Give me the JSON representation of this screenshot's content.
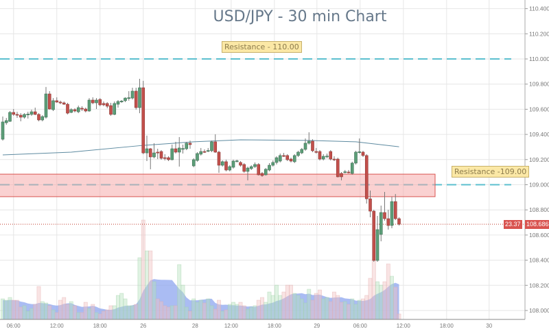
{
  "chart_data": {
    "type": "candlestick",
    "title": "USD/JPY - 30 min Chart",
    "ylim": [
      107.92,
      110.47
    ],
    "y_ticks": [
      "110.400",
      "110.200",
      "110.000",
      "109.800",
      "109.600",
      "109.400",
      "109.200",
      "109.000",
      "108.800",
      "108.600",
      "108.400",
      "108.200",
      "108.000"
    ],
    "x_ticks": [
      {
        "label": "06:00",
        "index": 3
      },
      {
        "label": "12:00",
        "index": 15
      },
      {
        "label": "18:00",
        "index": 27
      },
      {
        "label": "26",
        "index": 39
      },
      {
        "label": "28",
        "index": 53.4
      },
      {
        "label": "12:00",
        "index": 63.4
      },
      {
        "label": "18:00",
        "index": 75.4
      },
      {
        "label": "29",
        "index": 87.2
      },
      {
        "label": "06:00",
        "index": 99.2
      },
      {
        "label": "12:00",
        "index": 111.2
      },
      {
        "label": "18:00",
        "index": 123.2
      },
      {
        "label": "30",
        "index": 135
      }
    ],
    "grid": true,
    "candles_ohlc": [
      [
        109.362,
        109.542,
        109.351,
        109.499
      ],
      [
        109.493,
        109.531,
        109.477,
        109.51
      ],
      [
        109.504,
        109.586,
        109.499,
        109.575
      ],
      [
        109.575,
        109.602,
        109.548,
        109.559
      ],
      [
        109.559,
        109.58,
        109.531,
        109.553
      ],
      [
        109.553,
        109.569,
        109.504,
        109.537
      ],
      [
        109.537,
        109.569,
        109.526,
        109.559
      ],
      [
        109.559,
        109.58,
        109.526,
        109.562
      ],
      [
        109.559,
        109.597,
        109.548,
        109.58
      ],
      [
        109.58,
        109.613,
        109.553,
        109.559
      ],
      [
        109.559,
        109.569,
        109.504,
        109.515
      ],
      [
        109.515,
        109.553,
        109.504,
        109.542
      ],
      [
        109.537,
        109.777,
        109.526,
        109.722
      ],
      [
        109.722,
        109.744,
        109.597,
        109.602
      ],
      [
        109.597,
        109.689,
        109.586,
        109.668
      ],
      [
        109.668,
        109.695,
        109.651,
        109.657
      ],
      [
        109.657,
        109.668,
        109.64,
        109.655
      ],
      [
        109.651,
        109.662,
        109.635,
        109.64
      ],
      [
        109.64,
        109.651,
        109.559,
        109.569
      ],
      [
        109.575,
        109.608,
        109.569,
        109.597
      ],
      [
        109.597,
        109.608,
        109.575,
        109.586
      ],
      [
        109.58,
        109.629,
        109.569,
        109.613
      ],
      [
        109.608,
        109.624,
        109.586,
        109.602
      ],
      [
        109.602,
        109.613,
        109.575,
        109.586
      ],
      [
        109.586,
        109.689,
        109.58,
        109.673
      ],
      [
        109.673,
        109.695,
        109.64,
        109.651
      ],
      [
        109.651,
        109.689,
        109.602,
        109.673
      ],
      [
        109.678,
        109.689,
        109.624,
        109.635
      ],
      [
        109.646,
        109.662,
        109.624,
        109.635
      ],
      [
        109.646,
        109.657,
        109.608,
        109.624
      ],
      [
        109.629,
        109.651,
        109.548,
        109.559
      ],
      [
        109.559,
        109.662,
        109.553,
        109.646
      ],
      [
        109.64,
        109.673,
        109.613,
        109.662
      ],
      [
        109.662,
        109.673,
        109.651,
        109.665
      ],
      [
        109.668,
        109.695,
        109.657,
        109.689
      ],
      [
        109.689,
        109.744,
        109.668,
        109.692
      ],
      [
        109.689,
        109.771,
        109.678,
        109.744
      ],
      [
        109.744,
        109.771,
        109.597,
        109.613
      ],
      [
        109.613,
        109.842,
        109.569,
        109.771
      ],
      [
        109.771,
        109.826,
        109.243,
        109.253
      ],
      [
        109.253,
        109.39,
        109.188,
        109.286
      ],
      [
        109.286,
        109.292,
        109.123,
        109.221
      ],
      [
        109.221,
        109.33,
        109.21,
        109.253
      ],
      [
        109.259,
        109.286,
        109.204,
        109.257
      ],
      [
        109.264,
        109.275,
        109.199,
        109.21
      ],
      [
        109.215,
        109.243,
        109.193,
        109.213
      ],
      [
        109.215,
        109.226,
        109.188,
        109.199
      ],
      [
        109.199,
        109.319,
        109.193,
        109.286
      ],
      [
        109.286,
        109.341,
        109.248,
        109.259
      ],
      [
        109.259,
        109.379,
        109.144,
        109.292
      ],
      [
        109.286,
        109.319,
        109.248,
        109.288
      ],
      [
        109.286,
        109.341,
        109.275,
        109.33
      ],
      [
        109.33,
        109.351,
        109.286,
        109.319
      ],
      [
        109.15,
        109.21,
        109.139,
        109.199
      ],
      [
        109.193,
        109.259,
        109.183,
        109.248
      ],
      [
        109.243,
        109.292,
        109.232,
        109.264
      ],
      [
        109.264,
        109.281,
        109.253,
        109.262
      ],
      [
        109.27,
        109.292,
        109.259,
        109.272
      ],
      [
        109.27,
        109.351,
        109.259,
        109.341
      ],
      [
        109.341,
        109.401,
        109.253,
        109.259
      ],
      [
        109.259,
        109.27,
        109.095,
        109.155
      ],
      [
        109.155,
        109.193,
        109.144,
        109.183
      ],
      [
        109.183,
        109.199,
        109.106,
        109.117
      ],
      [
        109.117,
        109.155,
        109.106,
        109.144
      ],
      [
        109.139,
        109.199,
        109.128,
        109.188
      ],
      [
        109.188,
        109.199,
        109.177,
        109.19
      ],
      [
        109.177,
        109.188,
        109.144,
        109.155
      ],
      [
        109.161,
        109.172,
        109.095,
        109.106
      ],
      [
        109.106,
        109.144,
        109.035,
        109.133
      ],
      [
        109.128,
        109.155,
        109.117,
        109.144
      ],
      [
        109.144,
        109.177,
        109.133,
        109.161
      ],
      [
        109.161,
        109.172,
        109.073,
        109.079
      ],
      [
        109.09,
        109.101,
        109.063,
        109.073
      ],
      [
        109.079,
        109.133,
        109.073,
        109.123
      ],
      [
        109.117,
        109.172,
        109.106,
        109.155
      ],
      [
        109.155,
        109.193,
        109.144,
        109.177
      ],
      [
        109.177,
        109.226,
        109.161,
        109.215
      ],
      [
        109.188,
        109.248,
        109.177,
        109.232
      ],
      [
        109.232,
        109.253,
        109.221,
        109.23
      ],
      [
        109.232,
        109.243,
        109.188,
        109.199
      ],
      [
        109.204,
        109.215,
        109.177,
        109.188
      ],
      [
        109.183,
        109.243,
        109.172,
        109.232
      ],
      [
        109.232,
        109.27,
        109.221,
        109.259
      ],
      [
        109.253,
        109.292,
        109.243,
        109.281
      ],
      [
        109.281,
        109.368,
        109.27,
        109.33
      ],
      [
        109.33,
        109.417,
        109.319,
        109.346
      ],
      [
        109.346,
        109.362,
        109.259,
        109.27
      ],
      [
        109.264,
        109.292,
        109.248,
        109.262
      ],
      [
        109.264,
        109.275,
        109.193,
        109.204
      ],
      [
        109.204,
        109.243,
        109.193,
        109.226
      ],
      [
        109.226,
        109.248,
        109.21,
        109.228
      ],
      [
        109.264,
        109.275,
        109.193,
        109.204
      ],
      [
        109.204,
        109.226,
        109.188,
        109.202
      ],
      [
        109.204,
        109.215,
        109.058,
        109.063
      ],
      [
        109.09,
        109.101,
        109.035,
        109.063
      ],
      [
        109.101,
        109.117,
        109.09,
        109.103
      ],
      [
        109.101,
        109.117,
        109.09,
        109.099
      ],
      [
        109.09,
        109.183,
        109.079,
        109.172
      ],
      [
        109.172,
        109.27,
        109.161,
        109.259
      ],
      [
        109.259,
        109.368,
        109.248,
        109.262
      ],
      [
        109.259,
        109.27,
        109.221,
        109.232
      ],
      [
        109.232,
        109.243,
        108.85,
        108.888
      ],
      [
        108.888,
        108.954,
        108.741,
        108.79
      ],
      [
        108.79,
        108.801,
        108.387,
        108.398
      ],
      [
        108.398,
        108.752,
        108.387,
        108.643
      ],
      [
        108.605,
        108.834,
        108.55,
        108.779
      ],
      [
        108.779,
        108.943,
        108.714,
        108.73
      ],
      [
        108.73,
        108.801,
        108.643,
        108.676
      ],
      [
        108.676,
        108.905,
        108.654,
        108.866
      ],
      [
        108.866,
        108.926,
        108.719,
        108.73
      ],
      [
        108.73,
        108.741,
        108.676,
        108.686
      ]
    ],
    "volume": [
      30,
      28,
      32,
      28,
      28,
      18,
      20,
      12,
      16,
      22,
      48,
      26,
      24,
      20,
      14,
      10,
      28,
      32,
      22,
      26,
      20,
      10,
      10,
      25,
      16,
      22,
      10,
      8,
      12,
      14,
      20,
      20,
      35,
      38,
      30,
      20,
      20,
      22,
      90,
      145,
      100,
      100,
      55,
      30,
      26,
      20,
      18,
      20,
      20,
      80,
      50,
      18,
      12,
      30,
      25,
      28,
      24,
      30,
      20,
      15,
      28,
      12,
      14,
      22,
      25,
      22,
      25,
      20,
      15,
      18,
      20,
      28,
      32,
      25,
      40,
      35,
      50,
      35,
      40,
      50,
      50,
      38,
      35,
      30,
      24,
      44,
      28,
      38,
      43,
      30,
      32,
      26,
      40,
      35,
      25,
      26,
      22,
      30,
      22,
      28,
      30,
      35,
      60,
      86,
      55,
      50,
      55,
      81,
      63,
      47,
      8
    ],
    "moving_average": [
      {
        "index": 0,
        "value": 109.237
      },
      {
        "index": 19,
        "value": 109.259
      },
      {
        "index": 39,
        "value": 109.313
      },
      {
        "index": 53,
        "value": 109.341
      },
      {
        "index": 66,
        "value": 109.357
      },
      {
        "index": 85,
        "value": 109.352
      },
      {
        "index": 98,
        "value": 109.341
      },
      {
        "index": 110,
        "value": 109.302
      }
    ],
    "resistance_lines": [
      {
        "label": "Resistance - 110.00",
        "value": 110.0
      },
      {
        "label": "Resistance -109.00",
        "value": 109.0,
        "zone": [
          108.905,
          109.084
        ]
      }
    ],
    "last_price": "108.686",
    "last_volume": "23.37",
    "colors": {
      "up": "#5c9e78",
      "down": "#c2504c",
      "resistance": "#5bbfcf",
      "zone": "#f5a3a3",
      "ma": "#5d8aa0",
      "volume_ma": "#8ea6ef",
      "price_line": "#c0392b"
    }
  }
}
